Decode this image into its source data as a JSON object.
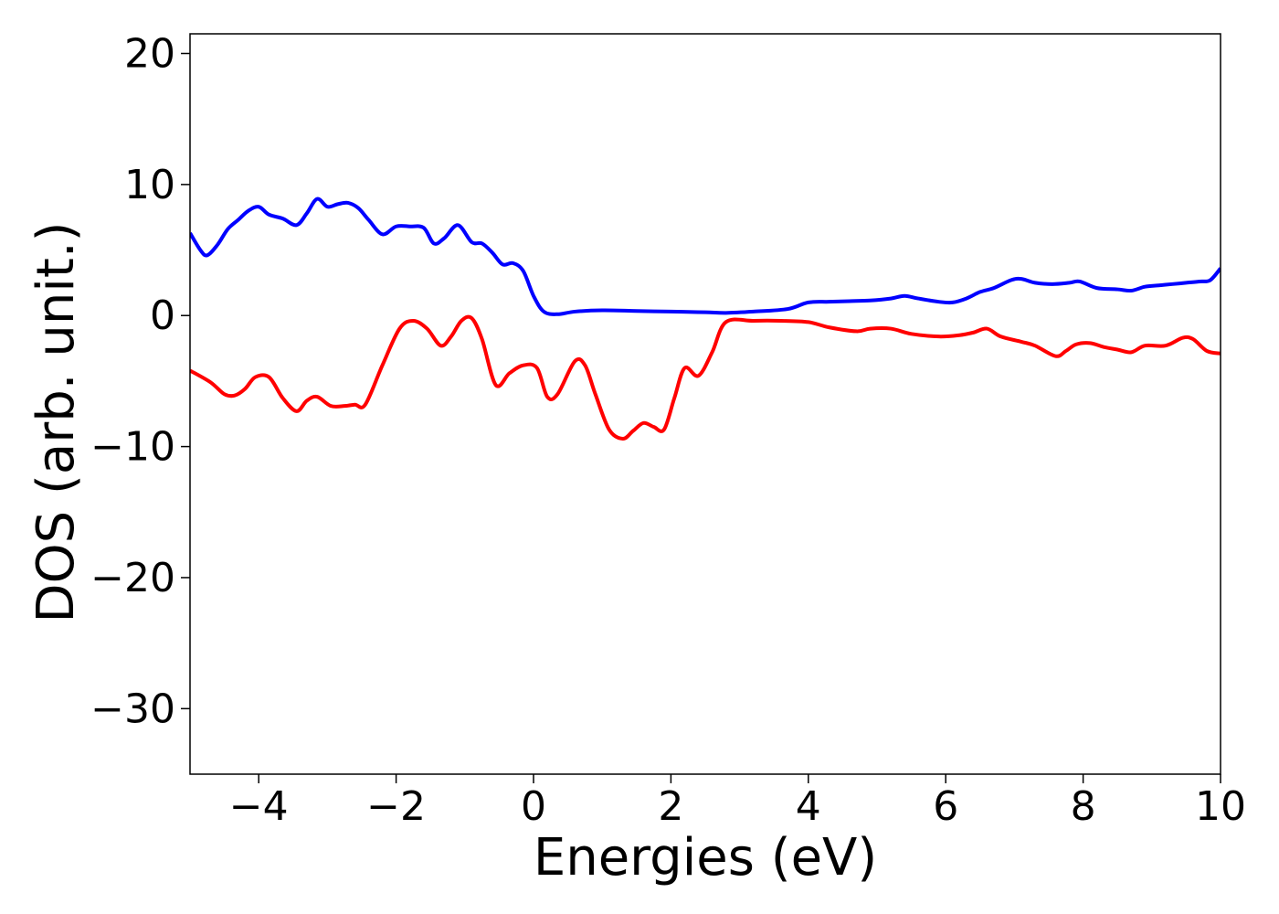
{
  "chart_data": {
    "type": "line",
    "xlabel": "Energies (eV)",
    "ylabel": "DOS (arb. unit.)",
    "xlim": [
      -5,
      10
    ],
    "ylim": [
      -35,
      21.5
    ],
    "xticks": [
      -4,
      -2,
      0,
      2,
      4,
      6,
      8,
      10
    ],
    "yticks": [
      20,
      10,
      0,
      -10,
      -20,
      -30
    ],
    "xtick_labels": [
      "−4",
      "−2",
      "0",
      "2",
      "4",
      "6",
      "8",
      "10"
    ],
    "ytick_labels": [
      "20",
      "10",
      "0",
      "−10",
      "−20",
      "−30"
    ],
    "grid": false,
    "legend": "none",
    "series": [
      {
        "color": "#0000ff",
        "x": [
          -5,
          -4.85,
          -4.75,
          -4.6,
          -4.45,
          -4.3,
          -4.15,
          -4.0,
          -3.85,
          -3.65,
          -3.45,
          -3.3,
          -3.15,
          -3.0,
          -2.85,
          -2.7,
          -2.55,
          -2.4,
          -2.2,
          -2.0,
          -1.8,
          -1.6,
          -1.45,
          -1.3,
          -1.1,
          -0.9,
          -0.75,
          -0.6,
          -0.45,
          -0.3,
          -0.15,
          0.0,
          0.15,
          0.35,
          0.6,
          1.0,
          1.5,
          2.0,
          2.5,
          2.8,
          3.2,
          3.7,
          4.0,
          4.3,
          4.6,
          4.9,
          5.2,
          5.4,
          5.6,
          5.9,
          6.1,
          6.3,
          6.5,
          6.7,
          6.95,
          7.1,
          7.3,
          7.55,
          7.8,
          7.95,
          8.2,
          8.5,
          8.7,
          8.9,
          9.1,
          9.3,
          9.5,
          9.7,
          9.85,
          10.0
        ],
        "y": [
          6.3,
          5.0,
          4.6,
          5.4,
          6.6,
          7.3,
          8.0,
          8.3,
          7.7,
          7.4,
          6.9,
          7.8,
          8.9,
          8.3,
          8.5,
          8.6,
          8.2,
          7.3,
          6.2,
          6.8,
          6.8,
          6.7,
          5.5,
          5.9,
          6.9,
          5.6,
          5.5,
          4.8,
          3.9,
          4.0,
          3.4,
          1.5,
          0.3,
          0.1,
          0.3,
          0.4,
          0.35,
          0.3,
          0.25,
          0.2,
          0.3,
          0.5,
          1.0,
          1.05,
          1.1,
          1.15,
          1.3,
          1.5,
          1.3,
          1.05,
          1.0,
          1.3,
          1.8,
          2.1,
          2.7,
          2.8,
          2.5,
          2.4,
          2.5,
          2.6,
          2.1,
          2.0,
          1.9,
          2.2,
          2.3,
          2.4,
          2.5,
          2.6,
          2.7,
          3.6
        ]
      },
      {
        "color": "#ff0000",
        "x": [
          -5,
          -4.7,
          -4.5,
          -4.35,
          -4.2,
          -4.05,
          -3.85,
          -3.65,
          -3.45,
          -3.3,
          -3.15,
          -2.95,
          -2.75,
          -2.6,
          -2.45,
          -2.2,
          -1.95,
          -1.75,
          -1.55,
          -1.35,
          -1.2,
          -1.05,
          -0.9,
          -0.75,
          -0.55,
          -0.35,
          -0.15,
          0.05,
          0.2,
          0.35,
          0.6,
          0.75,
          0.9,
          1.1,
          1.3,
          1.45,
          1.6,
          1.75,
          1.9,
          2.05,
          2.2,
          2.4,
          2.6,
          2.8,
          3.2,
          3.6,
          4.0,
          4.3,
          4.7,
          4.9,
          5.2,
          5.5,
          5.9,
          6.2,
          6.4,
          6.6,
          6.8,
          7.1,
          7.3,
          7.6,
          7.75,
          7.9,
          8.1,
          8.3,
          8.5,
          8.7,
          8.9,
          9.2,
          9.45,
          9.6,
          9.8,
          10.0
        ],
        "y": [
          -4.2,
          -5.1,
          -6.0,
          -6.1,
          -5.6,
          -4.7,
          -4.7,
          -6.3,
          -7.3,
          -6.5,
          -6.2,
          -6.9,
          -6.9,
          -6.8,
          -6.8,
          -3.8,
          -1.0,
          -0.4,
          -1.0,
          -2.3,
          -1.6,
          -0.4,
          -0.2,
          -1.8,
          -5.3,
          -4.4,
          -3.8,
          -4.0,
          -6.2,
          -6.0,
          -3.5,
          -3.8,
          -6.0,
          -8.7,
          -9.4,
          -8.8,
          -8.2,
          -8.5,
          -8.7,
          -6.3,
          -4.0,
          -4.6,
          -2.8,
          -0.5,
          -0.4,
          -0.4,
          -0.5,
          -0.9,
          -1.2,
          -1.0,
          -1.0,
          -1.4,
          -1.6,
          -1.5,
          -1.3,
          -1.0,
          -1.6,
          -2.0,
          -2.3,
          -3.1,
          -2.7,
          -2.2,
          -2.1,
          -2.4,
          -2.6,
          -2.8,
          -2.3,
          -2.3,
          -1.7,
          -1.8,
          -2.7,
          -2.9
        ]
      }
    ]
  }
}
